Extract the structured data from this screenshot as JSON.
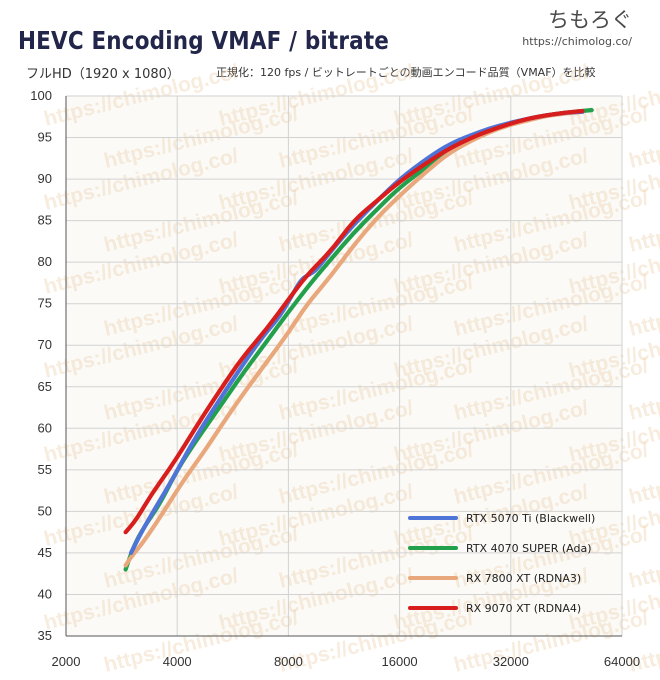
{
  "header": {
    "title": "HEVC Encoding VMAF / bitrate",
    "subtitle_left": "フルHD（1920 x 1080）",
    "subtitle_right": "正規化：120 fps / ビットレートごとの動画エンコード品質（VMAF）を比較"
  },
  "logo": {
    "text": "ちもろぐ",
    "url": "https://chimolog.co/"
  },
  "watermark": "https://chimolog.co/",
  "colors": {
    "background": "#fbfaf7",
    "grid": "#d2d2d2",
    "axis": "#555555"
  },
  "chart_data": {
    "type": "line",
    "title": "HEVC Encoding VMAF / bitrate",
    "xscale": "log2",
    "xlim": [
      2000,
      64000
    ],
    "ylim": [
      35,
      100
    ],
    "xticks": [
      2000,
      4000,
      8000,
      16000,
      32000,
      64000
    ],
    "xtick_labels": [
      "2000",
      "4000",
      "8000",
      "16000",
      "32000",
      "64000"
    ],
    "yticks": [
      35,
      40,
      45,
      50,
      55,
      60,
      65,
      70,
      75,
      80,
      85,
      90,
      95,
      100
    ],
    "ytick_labels": [
      "35",
      "40",
      "45",
      "50",
      "55",
      "60",
      "65",
      "70",
      "75",
      "80",
      "85",
      "90",
      "95",
      "100"
    ],
    "legend_position": "lower-right",
    "series": [
      {
        "name": "RTX 4070 SUPER (Ada)",
        "color": "#22a04b",
        "x": [
          2900,
          2950,
          3100,
          3300,
          3600,
          4000,
          4500,
          5200,
          6000,
          7000,
          8000,
          9200,
          10500,
          12000,
          14000,
          16000,
          19000,
          22000,
          26000,
          30000,
          35000,
          40000,
          45000,
          50000,
          53000
        ],
        "y": [
          43,
          44,
          46.5,
          48.5,
          51,
          55,
          58.5,
          62.5,
          66.5,
          70.5,
          74,
          77.5,
          80.5,
          83.5,
          86.5,
          89,
          91.5,
          93.5,
          95.2,
          96.3,
          97.2,
          97.7,
          98,
          98.2,
          98.3
        ]
      },
      {
        "name": "RX 7800 XT (RDNA3)",
        "color": "#e8a87c",
        "x": [
          2900,
          3000,
          3200,
          3500,
          3800,
          4200,
          4700,
          5300,
          6000,
          7000,
          8000,
          9000,
          10500,
          12000,
          14000,
          16000,
          19000,
          22000,
          26000,
          30000,
          35000,
          40000,
          45000,
          50000
        ],
        "y": [
          43.5,
          44.5,
          46,
          48.5,
          51,
          54,
          57,
          60.5,
          64,
          68,
          71.5,
          75,
          78.5,
          82,
          85.5,
          88,
          91,
          93.3,
          95,
          96.2,
          97,
          97.6,
          97.9,
          98.1
        ]
      },
      {
        "name": "RTX 5070 Ti (Blackwell)",
        "color": "#4e74d8",
        "x": [
          3000,
          3200,
          3500,
          3900,
          4300,
          4800,
          5400,
          6100,
          6800,
          7600,
          8300,
          8700,
          9100,
          9500,
          10500,
          12000,
          14000,
          16000,
          19000,
          22000,
          26000,
          30000,
          35000,
          40000,
          45000,
          50000
        ],
        "y": [
          45,
          47.5,
          50.5,
          54,
          57.5,
          61,
          64.5,
          68,
          71,
          73.5,
          76.5,
          78,
          78.5,
          79,
          81.5,
          84.5,
          87.5,
          90,
          92.5,
          94.3,
          95.6,
          96.5,
          97.2,
          97.7,
          98,
          98.1
        ]
      },
      {
        "name": "RX 9070 XT (RDNA4)",
        "color": "#d81d1d",
        "x": [
          2900,
          3100,
          3400,
          3800,
          4200,
          4700,
          5300,
          6000,
          7000,
          8000,
          9000,
          10500,
          12000,
          14000,
          16000,
          19000,
          22000,
          26000,
          30000,
          35000,
          40000,
          45000,
          50000
        ],
        "y": [
          47.5,
          49,
          52,
          55,
          58,
          61.5,
          65,
          68.5,
          72,
          75.5,
          78.5,
          81.5,
          85,
          87.5,
          89.7,
          92,
          93.8,
          95.3,
          96.3,
          97.2,
          97.7,
          98,
          98.2
        ]
      }
    ],
    "legend_order": [
      "RTX 5070 Ti (Blackwell)",
      "RTX 4070 SUPER (Ada)",
      "RX 7800 XT (RDNA3)",
      "RX 9070 XT (RDNA4)"
    ]
  }
}
